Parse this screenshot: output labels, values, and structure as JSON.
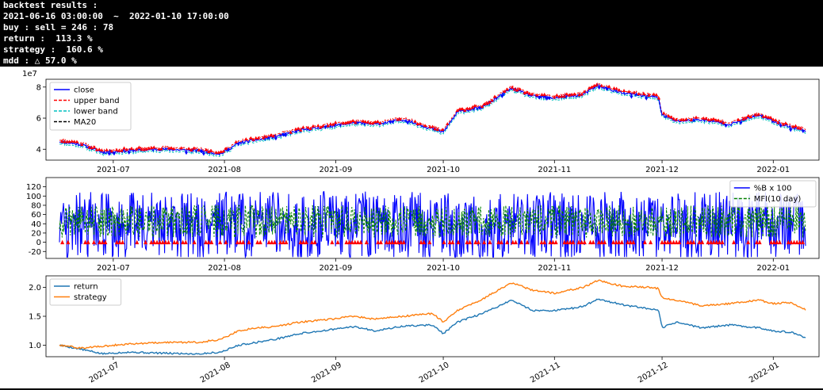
{
  "console": {
    "title": "backtest results :",
    "period": "2021-06-16 03:00:00  ~  2022-01-10 17:00:00",
    "buy_sell": "buy : sell = 246 : 78",
    "return": "return :  113.3 %",
    "strategy": "strategy :  160.6 %",
    "mdd": "mdd : △ 57.0 %"
  },
  "x_ticks": [
    "2021-07",
    "2021-08",
    "2021-09",
    "2021-10",
    "2021-11",
    "2021-12",
    "2022-01"
  ],
  "chart_data": [
    {
      "type": "line",
      "name": "price-bands",
      "x_range": [
        "2021-06-16",
        "2022-01-10"
      ],
      "y_multiplier_label": "1e7",
      "ylim": [
        3.3,
        8.5
      ],
      "yticks": [
        4,
        6,
        8
      ],
      "legend_position": "top-left",
      "series": [
        {
          "name": "close",
          "color": "#0000ff",
          "style": "solid"
        },
        {
          "name": "upper band",
          "color": "#ff0000",
          "style": "dashed"
        },
        {
          "name": "lower band",
          "color": "#00bfbf",
          "style": "dashed"
        },
        {
          "name": "MA20",
          "color": "#000000",
          "style": "dashed"
        }
      ],
      "x": [
        "2021-06-16",
        "2021-06-22",
        "2021-06-28",
        "2021-07-05",
        "2021-07-15",
        "2021-07-25",
        "2021-07-31",
        "2021-08-05",
        "2021-08-10",
        "2021-08-15",
        "2021-08-22",
        "2021-08-31",
        "2021-09-06",
        "2021-09-12",
        "2021-09-20",
        "2021-09-28",
        "2021-10-01",
        "2021-10-05",
        "2021-10-12",
        "2021-10-20",
        "2021-10-26",
        "2021-11-01",
        "2021-11-05",
        "2021-11-09",
        "2021-11-13",
        "2021-11-20",
        "2021-11-28",
        "2021-11-30",
        "2021-12-01",
        "2021-12-05",
        "2021-12-12",
        "2021-12-20",
        "2021-12-28",
        "2022-01-01",
        "2022-01-06",
        "2022-01-10"
      ],
      "close": [
        4.5,
        4.3,
        3.8,
        3.9,
        4.0,
        3.9,
        3.7,
        4.4,
        4.6,
        4.8,
        5.2,
        5.5,
        5.7,
        5.6,
        5.9,
        5.3,
        5.1,
        6.4,
        6.7,
        7.9,
        7.4,
        7.3,
        7.4,
        7.5,
        8.1,
        7.6,
        7.4,
        7.3,
        6.2,
        5.8,
        5.9,
        5.6,
        6.2,
        5.8,
        5.4,
        5.2
      ],
      "markers_up_color": "#ff0000",
      "markers_down_color": "#0000ff"
    },
    {
      "type": "line",
      "name": "indicators",
      "ylim": [
        -35,
        140
      ],
      "yticks": [
        -20,
        0,
        20,
        40,
        60,
        80,
        100,
        120
      ],
      "legend_position": "top-right",
      "series": [
        {
          "name": "%B x 100",
          "color": "#0000ff",
          "style": "solid"
        },
        {
          "name": "MFI(10 day)",
          "color": "#008000",
          "style": "dashed"
        }
      ],
      "markers": {
        "color": "#ff0000",
        "y": 0
      }
    },
    {
      "type": "line",
      "name": "returns",
      "ylim": [
        0.8,
        2.2
      ],
      "yticks": [
        1.0,
        1.5,
        2.0
      ],
      "legend_position": "top-left",
      "series": [
        {
          "name": "return",
          "color": "#1f77b4",
          "values": [
            1.0,
            0.93,
            0.85,
            0.88,
            0.86,
            0.85,
            0.88,
            1.0,
            1.05,
            1.1,
            1.2,
            1.27,
            1.32,
            1.25,
            1.33,
            1.35,
            1.2,
            1.4,
            1.55,
            1.78,
            1.6,
            1.6,
            1.63,
            1.67,
            1.8,
            1.7,
            1.62,
            1.6,
            1.3,
            1.4,
            1.3,
            1.35,
            1.3,
            1.25,
            1.22,
            1.13
          ]
        },
        {
          "name": "strategy",
          "color": "#ff7f0e",
          "values": [
            1.0,
            0.95,
            0.98,
            1.02,
            1.05,
            1.05,
            1.1,
            1.25,
            1.3,
            1.32,
            1.4,
            1.45,
            1.5,
            1.45,
            1.5,
            1.55,
            1.4,
            1.6,
            1.8,
            2.08,
            1.95,
            1.9,
            1.95,
            2.0,
            2.12,
            2.02,
            2.0,
            1.98,
            1.82,
            1.78,
            1.68,
            1.72,
            1.78,
            1.72,
            1.74,
            1.61
          ]
        }
      ]
    }
  ]
}
